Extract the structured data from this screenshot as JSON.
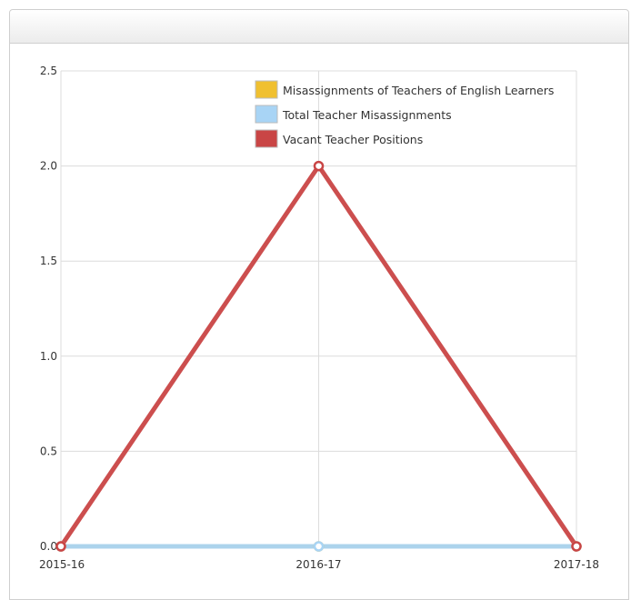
{
  "chart_data": {
    "type": "line",
    "title": "",
    "xlabel": "",
    "ylabel": "",
    "categories": [
      "2015-16",
      "2016-17",
      "2017-18"
    ],
    "ylim": [
      0,
      2.5
    ],
    "yticks": [
      "0.0",
      "0.5",
      "1.0",
      "1.5",
      "2.0",
      "2.5"
    ],
    "grid": true,
    "legend_position": "top-right",
    "series": [
      {
        "name": "Misassignments of Teachers of English Learners",
        "values": [
          0,
          0,
          0
        ],
        "color": "#f0c030"
      },
      {
        "name": "Total Teacher Misassignments",
        "values": [
          0,
          0,
          0
        ],
        "color": "#a8d4f5"
      },
      {
        "name": "Vacant Teacher Positions",
        "values": [
          0,
          2,
          0
        ],
        "color": "#c94545"
      }
    ]
  }
}
